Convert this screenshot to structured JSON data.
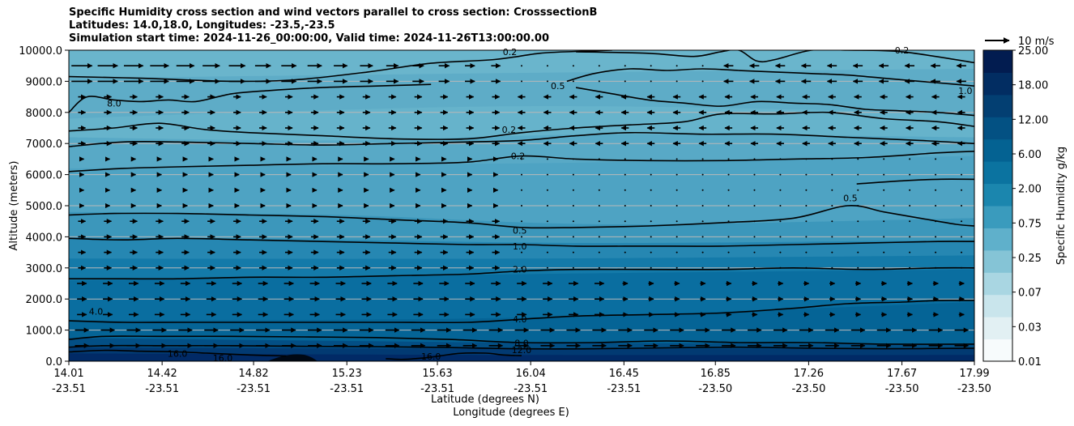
{
  "chart_data": {
    "type": "contour",
    "title_lines": [
      "Specific Humidity cross section and wind vectors parallel to cross section: CrosssectionB",
      "Latitudes: 14.0,18.0, Longitudes: -23.5,-23.5",
      "Simulation start time: 2024-11-26_00:00:00, Valid time: 2024-11-26T13:00:00.00"
    ],
    "ylabel": "Altitude (meters)",
    "xlabel_lines": [
      "Latitude (degrees N)",
      "Longitude (degrees E)"
    ],
    "ylim": [
      0,
      10000
    ],
    "yticks": [
      "0.0",
      "1000.0",
      "2000.0",
      "3000.0",
      "4000.0",
      "5000.0",
      "6000.0",
      "7000.0",
      "8000.0",
      "9000.0",
      "10000.0"
    ],
    "xticks": [
      {
        "lat": "14.01",
        "lon": "-23.51"
      },
      {
        "lat": "14.42",
        "lon": "-23.51"
      },
      {
        "lat": "14.82",
        "lon": "-23.51"
      },
      {
        "lat": "15.23",
        "lon": "-23.51"
      },
      {
        "lat": "15.63",
        "lon": "-23.51"
      },
      {
        "lat": "16.04",
        "lon": "-23.51"
      },
      {
        "lat": "16.45",
        "lon": "-23.51"
      },
      {
        "lat": "16.85",
        "lon": "-23.50"
      },
      {
        "lat": "17.26",
        "lon": "-23.50"
      },
      {
        "lat": "17.67",
        "lon": "-23.50"
      },
      {
        "lat": "17.99",
        "lon": "-23.50"
      }
    ],
    "grid": "horizontal",
    "colorbar": {
      "label": "Specific Humidity g/kg",
      "levels": [
        "0.01",
        "0.03",
        "0.07",
        "0.25",
        "0.75",
        "2.00",
        "6.00",
        "12.00",
        "18.00",
        "25.00"
      ],
      "colors": [
        "#f7fbfc",
        "#e2f0f3",
        "#c9e5ec",
        "#a9d6e2",
        "#85c4d6",
        "#5fb0cb",
        "#3a9bbd",
        "#1b86ae",
        "#0b73a0",
        "#046292",
        "#035183",
        "#033f72",
        "#022d62",
        "#021c50"
      ]
    },
    "quiver_key": "10 m/s",
    "contour_labels": [
      {
        "text": "0.2",
        "x_frac": 0.487,
        "alt": 9950
      },
      {
        "text": "0.2",
        "x_frac": 0.92,
        "alt": 10000
      },
      {
        "text": "0.5",
        "x_frac": 0.54,
        "alt": 8850
      },
      {
        "text": "1.0",
        "x_frac": 0.99,
        "alt": 8700
      },
      {
        "text": "0.2",
        "x_frac": 0.486,
        "alt": 7450
      },
      {
        "text": "0.2",
        "x_frac": 0.496,
        "alt": 6600
      },
      {
        "text": "0.5",
        "x_frac": 0.863,
        "alt": 5250
      },
      {
        "text": "0.5",
        "x_frac": 0.498,
        "alt": 4200
      },
      {
        "text": "1.0",
        "x_frac": 0.498,
        "alt": 3700
      },
      {
        "text": "2.0",
        "x_frac": 0.498,
        "alt": 2950
      },
      {
        "text": "4.0",
        "x_frac": 0.498,
        "alt": 1350
      },
      {
        "text": "4.0",
        "x_frac": 0.03,
        "alt": 1600
      },
      {
        "text": "8.0",
        "x_frac": 0.5,
        "alt": 580
      },
      {
        "text": "12.0",
        "x_frac": 0.5,
        "alt": 360
      },
      {
        "text": "16.0",
        "x_frac": 0.12,
        "alt": 250
      },
      {
        "text": "16.0",
        "x_frac": 0.17,
        "alt": 100
      },
      {
        "text": "16.0",
        "x_frac": 0.4,
        "alt": 150
      },
      {
        "text": "8.0",
        "x_frac": 0.05,
        "alt": 8300
      }
    ],
    "contours": [
      {
        "level": "0.2",
        "x": [
          0.0,
          0.08,
          0.18,
          0.25,
          0.33,
          0.4,
          0.47,
          0.52,
          0.56,
          0.6
        ],
        "alt": [
          9150,
          9100,
          9000,
          9050,
          9300,
          9580,
          9700,
          9900,
          9960,
          10000
        ]
      },
      {
        "level": "0.2",
        "x": [
          0.56,
          0.64,
          0.69,
          0.72,
          0.74,
          0.76,
          0.78,
          0.82,
          0.86,
          0.92,
          1.0
        ],
        "alt": [
          9950,
          9900,
          9800,
          9950,
          10000,
          9650,
          9700,
          10000,
          10000,
          9950,
          9600
        ]
      },
      {
        "level": "0.5",
        "x": [
          0.0,
          0.02,
          0.05,
          0.08,
          0.11,
          0.14,
          0.18,
          0.22,
          0.28,
          0.34,
          0.4
        ],
        "alt": [
          8000,
          8500,
          8400,
          8350,
          8400,
          8350,
          8600,
          8700,
          8800,
          8850,
          8900
        ]
      },
      {
        "level": "0.5",
        "x": [
          0.55,
          0.58,
          0.62,
          0.66,
          0.7,
          0.74,
          0.78,
          0.82,
          0.86,
          0.9,
          0.94,
          0.98,
          1.0
        ],
        "alt": [
          9000,
          9250,
          9400,
          9350,
          9400,
          9350,
          9300,
          9250,
          9200,
          9100,
          9000,
          8900,
          8850
        ]
      },
      {
        "level": "1.0",
        "x": [
          0.56,
          0.6,
          0.64,
          0.68,
          0.72,
          0.76,
          0.8,
          0.84,
          0.88,
          0.92,
          0.96,
          1.0
        ],
        "alt": [
          8800,
          8600,
          8400,
          8300,
          8200,
          8350,
          8300,
          8250,
          8100,
          8050,
          8000,
          7900
        ]
      },
      {
        "level": "1.0",
        "x": [
          0.0,
          0.05,
          0.1,
          0.15,
          0.2,
          0.28,
          0.36,
          0.44,
          0.5,
          0.56,
          0.62,
          0.68,
          0.72,
          0.78,
          0.84,
          0.9,
          0.96,
          1.0
        ],
        "alt": [
          7400,
          7500,
          7650,
          7450,
          7350,
          7250,
          7150,
          7150,
          7350,
          7500,
          7600,
          7700,
          7950,
          7950,
          8000,
          7800,
          7700,
          7550
        ]
      },
      {
        "level": "0.2",
        "x": [
          0.0,
          0.06,
          0.12,
          0.2,
          0.28,
          0.36,
          0.44,
          0.5,
          0.56,
          0.62,
          0.7,
          0.78,
          0.86,
          0.94,
          1.0
        ],
        "alt": [
          6900,
          7050,
          7050,
          7000,
          6950,
          7000,
          7050,
          7100,
          7250,
          7350,
          7300,
          7300,
          7200,
          7100,
          7000
        ]
      },
      {
        "level": "0.2",
        "x": [
          0.0,
          0.06,
          0.12,
          0.2,
          0.28,
          0.36,
          0.44,
          0.5,
          0.56,
          0.64,
          0.72,
          0.8,
          0.88,
          0.96,
          1.0
        ],
        "alt": [
          6100,
          6200,
          6250,
          6300,
          6350,
          6350,
          6400,
          6600,
          6500,
          6450,
          6450,
          6500,
          6550,
          6700,
          6750
        ]
      },
      {
        "level": "0.5",
        "x": [
          0.87,
          0.92,
          0.96,
          1.0
        ],
        "alt": [
          5700,
          5800,
          5850,
          5850
        ]
      },
      {
        "level": "0.5",
        "x": [
          0.0,
          0.05,
          0.12,
          0.2,
          0.28,
          0.36,
          0.44,
          0.5,
          0.56,
          0.64,
          0.72,
          0.8,
          0.86,
          0.9,
          0.94,
          0.98,
          1.0
        ],
        "alt": [
          4700,
          4750,
          4750,
          4700,
          4650,
          4550,
          4450,
          4300,
          4300,
          4350,
          4450,
          4600,
          5000,
          4800,
          4600,
          4400,
          4350
        ]
      },
      {
        "level": "1.0",
        "x": [
          0.0,
          0.06,
          0.12,
          0.2,
          0.28,
          0.36,
          0.44,
          0.5,
          0.56,
          0.64,
          0.72,
          0.8,
          0.88,
          0.96,
          1.0
        ],
        "alt": [
          3950,
          3900,
          3950,
          3900,
          3850,
          3800,
          3750,
          3750,
          3700,
          3700,
          3700,
          3750,
          3800,
          3850,
          3850
        ]
      },
      {
        "level": "2.0",
        "x": [
          0.0,
          0.06,
          0.12,
          0.2,
          0.28,
          0.36,
          0.44,
          0.5,
          0.56,
          0.64,
          0.72,
          0.8,
          0.88,
          0.96,
          1.0
        ],
        "alt": [
          2650,
          2650,
          2650,
          2700,
          2700,
          2750,
          2800,
          2900,
          2950,
          2950,
          2950,
          3000,
          2950,
          3000,
          3000
        ]
      },
      {
        "level": "4.0",
        "x": [
          0.0,
          0.06,
          0.12,
          0.2,
          0.28,
          0.36,
          0.44,
          0.5,
          0.56,
          0.64,
          0.72,
          0.8,
          0.86,
          0.92,
          0.96,
          1.0
        ],
        "alt": [
          1300,
          1250,
          1250,
          1250,
          1250,
          1250,
          1250,
          1350,
          1450,
          1500,
          1550,
          1700,
          1850,
          1900,
          1950,
          1950
        ]
      },
      {
        "level": "8.0",
        "x": [
          0.0,
          0.04,
          0.1,
          0.18,
          0.26,
          0.34,
          0.42,
          0.5,
          0.58,
          0.66,
          0.74,
          0.82,
          0.9,
          1.0
        ],
        "alt": [
          700,
          800,
          800,
          800,
          780,
          760,
          700,
          600,
          600,
          650,
          600,
          600,
          550,
          550
        ]
      },
      {
        "level": "12.0",
        "x": [
          0.0,
          0.04,
          0.1,
          0.18,
          0.26,
          0.34,
          0.42,
          0.5,
          0.58,
          0.66,
          0.74,
          0.82,
          0.9,
          1.0
        ],
        "alt": [
          450,
          500,
          500,
          500,
          480,
          470,
          440,
          400,
          400,
          430,
          450,
          420,
          400,
          420
        ]
      },
      {
        "level": "16.0",
        "x": [
          0.0,
          0.04,
          0.08,
          0.12,
          0.16,
          0.2,
          0.24
        ],
        "alt": [
          300,
          350,
          320,
          300,
          250,
          200,
          170
        ]
      },
      {
        "level": "16.0",
        "x": [
          0.35,
          0.37,
          0.4,
          0.43,
          0.46,
          0.48,
          0.5
        ],
        "alt": [
          80,
          60,
          130,
          250,
          260,
          200,
          180
        ]
      }
    ]
  }
}
